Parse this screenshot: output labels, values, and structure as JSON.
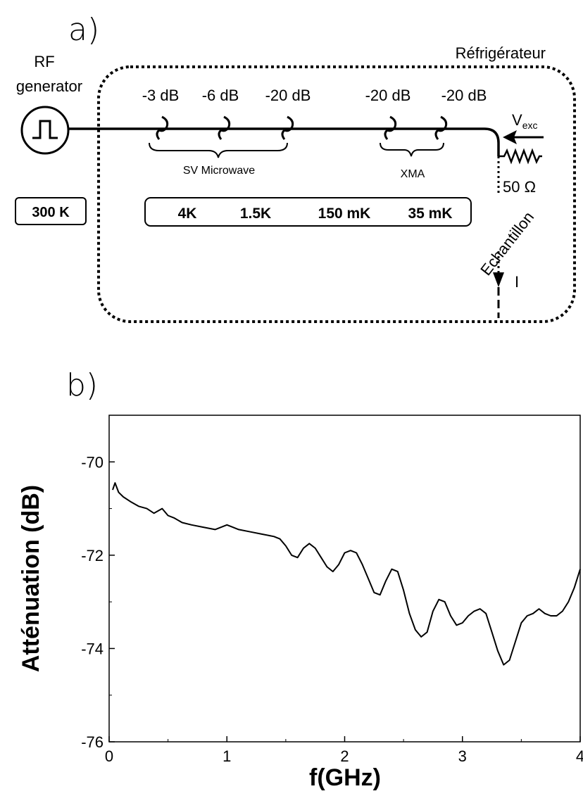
{
  "panel_a": {
    "label": "a)",
    "rf_generator_line1": "RF",
    "rf_generator_line2": "generator",
    "fridge_label": "Réfrigérateur",
    "room_temp": "300 K",
    "attenuators": [
      "-3 dB",
      "-6 dB",
      "-20 dB",
      "-20 dB",
      "-20 dB"
    ],
    "group_labels": [
      "SV Microwave",
      "XMA"
    ],
    "stages": [
      "4K",
      "1.5K",
      "150 mK",
      "35 mK"
    ],
    "vexc_main": "V",
    "vexc_sub": "exc",
    "resistor_label": "50 Ω",
    "sample_label": "Echantillon",
    "current_label": "I"
  },
  "panel_b": {
    "label": "b)",
    "chart_data": {
      "type": "line",
      "xlabel": "f(GHz)",
      "ylabel": "Atténuation (dB)",
      "xlim": [
        0,
        4
      ],
      "ylim": [
        -76,
        -69
      ],
      "xticks": [
        0,
        1,
        2,
        3,
        4
      ],
      "yticks": [
        -70,
        -72,
        -74,
        -76
      ],
      "grid": false,
      "series": [
        {
          "x": [
            0.03,
            0.05,
            0.08,
            0.12,
            0.18,
            0.25,
            0.32,
            0.38,
            0.45,
            0.5,
            0.55,
            0.62,
            0.7,
            0.8,
            0.9,
            1.0,
            1.05,
            1.1,
            1.2,
            1.3,
            1.4,
            1.45,
            1.5,
            1.55,
            1.6,
            1.65,
            1.7,
            1.75,
            1.8,
            1.85,
            1.9,
            1.95,
            2.0,
            2.05,
            2.1,
            2.15,
            2.2,
            2.25,
            2.3,
            2.35,
            2.4,
            2.45,
            2.5,
            2.55,
            2.6,
            2.65,
            2.7,
            2.75,
            2.8,
            2.85,
            2.9,
            2.95,
            3.0,
            3.05,
            3.1,
            3.15,
            3.2,
            3.25,
            3.3,
            3.35,
            3.4,
            3.45,
            3.5,
            3.55,
            3.6,
            3.65,
            3.7,
            3.75,
            3.8,
            3.85,
            3.9,
            3.95,
            4.0
          ],
          "y": [
            -70.6,
            -70.45,
            -70.65,
            -70.75,
            -70.85,
            -70.95,
            -71.0,
            -71.1,
            -71.0,
            -71.15,
            -71.2,
            -71.3,
            -71.35,
            -71.4,
            -71.45,
            -71.35,
            -71.4,
            -71.45,
            -71.5,
            -71.55,
            -71.6,
            -71.65,
            -71.8,
            -72.0,
            -72.05,
            -71.85,
            -71.75,
            -71.85,
            -72.05,
            -72.25,
            -72.35,
            -72.2,
            -71.95,
            -71.9,
            -71.95,
            -72.2,
            -72.5,
            -72.8,
            -72.85,
            -72.55,
            -72.3,
            -72.35,
            -72.75,
            -73.25,
            -73.6,
            -73.75,
            -73.65,
            -73.2,
            -72.95,
            -73.0,
            -73.3,
            -73.5,
            -73.45,
            -73.3,
            -73.2,
            -73.15,
            -73.25,
            -73.65,
            -74.05,
            -74.35,
            -74.25,
            -73.85,
            -73.45,
            -73.3,
            -73.25,
            -73.15,
            -73.25,
            -73.3,
            -73.3,
            -73.2,
            -73.0,
            -72.7,
            -72.3
          ]
        }
      ]
    }
  }
}
